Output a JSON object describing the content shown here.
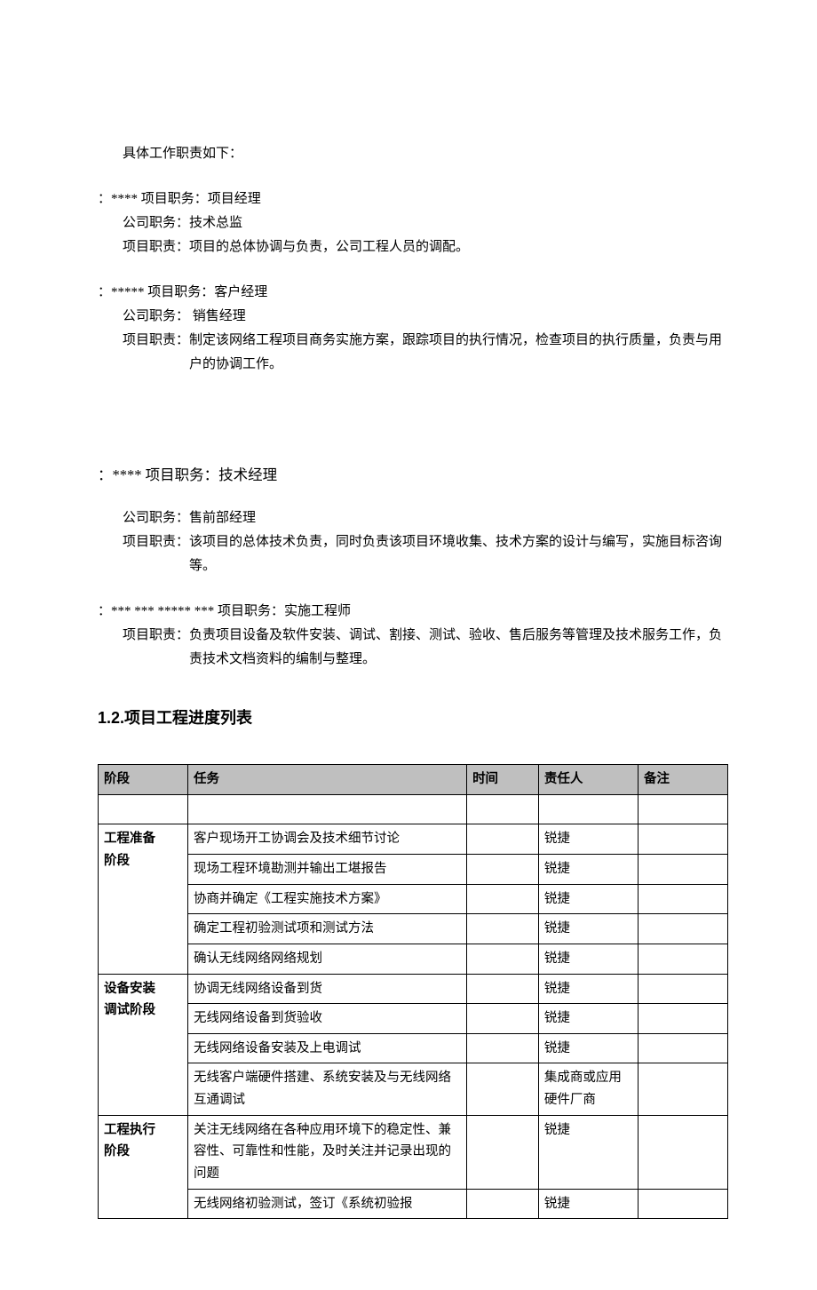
{
  "intro": "具体工作职责如下：",
  "roles": [
    {
      "prefix": "：****",
      "position_label": "项目职务：",
      "position": "项目经理",
      "company_label": "公司职务：",
      "company": "技术总监",
      "duty_label": "项目职责：",
      "duty": "项目的总体协调与负责，公司工程人员的调配。",
      "large": false
    },
    {
      "prefix": "：*****",
      "position_label": "项目职务：",
      "position": "客户经理",
      "company_label": "公司职务：",
      "company": " 销售经理",
      "duty_label": "项目职责：",
      "duty": "制定该网络工程项目商务实施方案，跟踪项目的执行情况，检查项目的执行质量，负责与用户的协调工作。",
      "large": false
    },
    {
      "prefix": "：****",
      "position_label": "项目职务：",
      "position": "技术经理",
      "company_label": "公司职务：",
      "company": "售前部经理",
      "duty_label": "项目职责：",
      "duty": "该项目的总体技术负责，同时负责该项目环境收集、技术方案的设计与编写，实施目标咨询等。",
      "large": true
    },
    {
      "prefix": "：***  *** ***** ***",
      "position_label": "项目职务：",
      "position": "实施工程师",
      "company_label": "",
      "company": "",
      "duty_label": "项目职责：",
      "duty": "负责项目设备及软件安装、调试、割接、测试、验收、售后服务等管理及技术服务工作，负责技术文档资料的编制与整理。",
      "large": false
    }
  ],
  "section_title": "1.2.项目工程进度列表",
  "table": {
    "columns": [
      "阶段",
      "任务",
      "时间",
      "责任人",
      "备注"
    ],
    "rows": [
      {
        "phase": "",
        "task": "",
        "time": "",
        "owner": "",
        "note": "",
        "phase_rowspan": 0
      },
      {
        "phase": "工程准备阶段",
        "task": "客户现场开工协调会及技术细节讨论",
        "time": "",
        "owner": "锐捷",
        "note": "",
        "phase_rowspan": 5
      },
      {
        "phase": "",
        "task": "现场工程环境勘测并输出工堪报告",
        "time": "",
        "owner": "锐捷",
        "note": "",
        "phase_rowspan": 0
      },
      {
        "phase": "",
        "task": "协商并确定《工程实施技术方案》",
        "time": "",
        "owner": "锐捷",
        "note": "",
        "phase_rowspan": 0
      },
      {
        "phase": "",
        "task": "确定工程初验测试项和测试方法",
        "time": "",
        "owner": "锐捷",
        "note": "",
        "phase_rowspan": 0
      },
      {
        "phase": "",
        "task": "确认无线网络网络规划",
        "time": "",
        "owner": "锐捷",
        "note": "",
        "phase_rowspan": 0
      },
      {
        "phase": "设备安装调试阶段",
        "task": "协调无线网络设备到货",
        "time": "",
        "owner": "锐捷",
        "note": "",
        "phase_rowspan": 4
      },
      {
        "phase": "",
        "task": "无线网络设备到货验收",
        "time": "",
        "owner": "锐捷",
        "note": "",
        "phase_rowspan": 0
      },
      {
        "phase": "",
        "task": "无线网络设备安装及上电调试",
        "time": "",
        "owner": "锐捷",
        "note": "",
        "phase_rowspan": 0
      },
      {
        "phase": "",
        "task": "无线客户端硬件搭建、系统安装及与无线网络互通调试",
        "time": "",
        "owner": "集成商或应用硬件厂商",
        "note": "",
        "phase_rowspan": 0
      },
      {
        "phase": "工程执行阶段",
        "task": "关注无线网络在各种应用环境下的稳定性、兼容性、可靠性和性能，及时关注并记录出现的问题",
        "time": "",
        "owner": "锐捷",
        "note": "",
        "phase_rowspan": 2
      },
      {
        "phase": "",
        "task": "无线网络初验测试，签订《系统初验报",
        "time": "",
        "owner": "锐捷",
        "note": "",
        "phase_rowspan": 0
      }
    ]
  }
}
